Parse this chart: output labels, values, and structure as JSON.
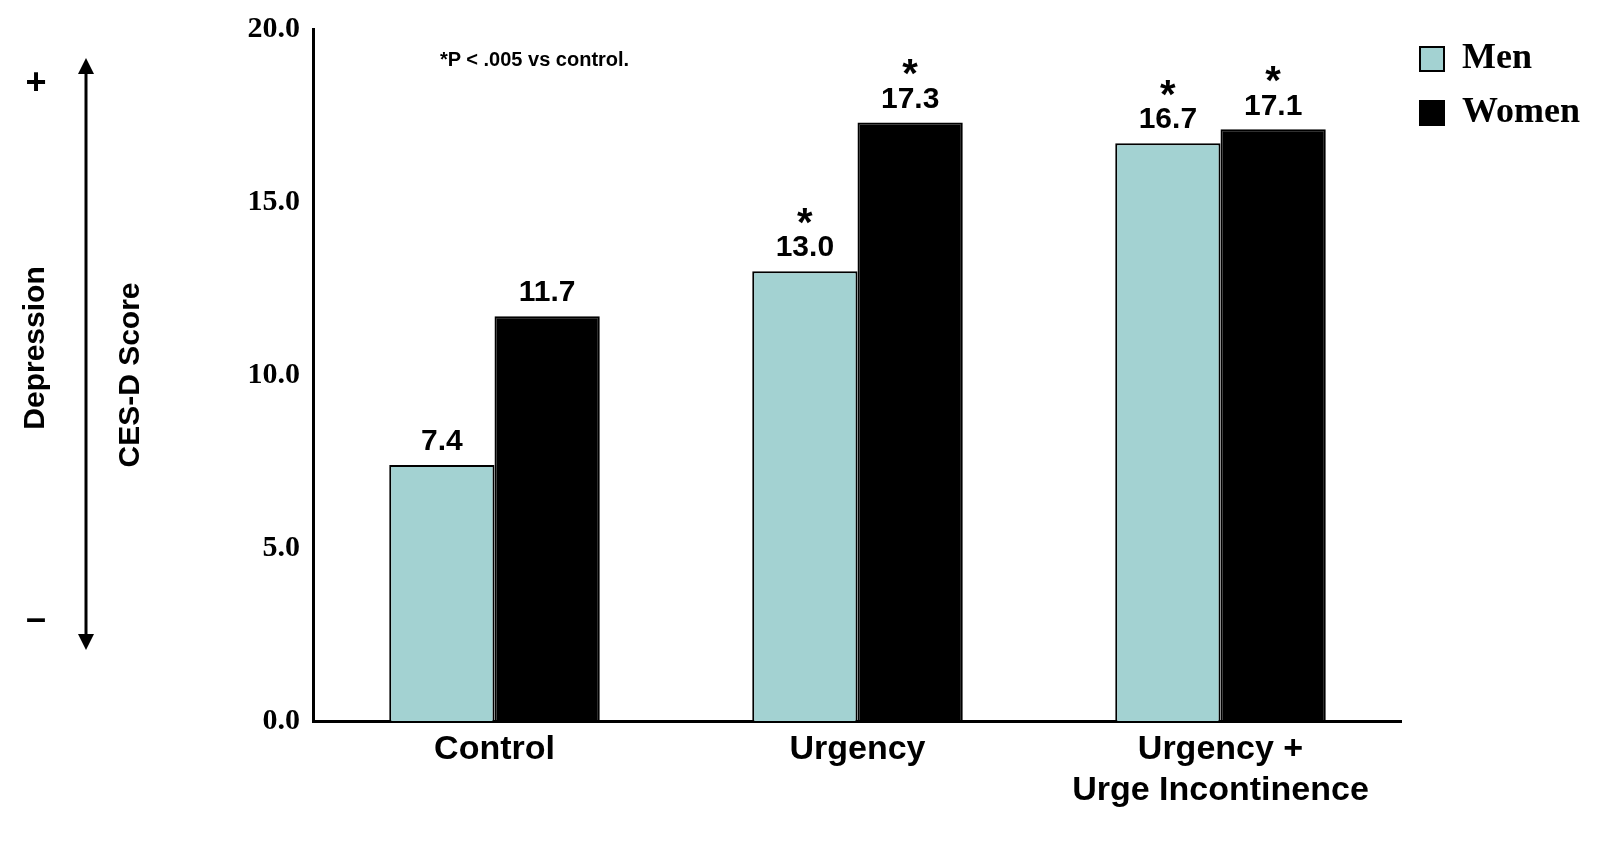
{
  "chart_data": {
    "type": "bar",
    "categories": [
      "Control",
      "Urgency",
      "Urgency +\nUrge Incontinence"
    ],
    "series": [
      {
        "name": "Men",
        "color": "#a3d2d2",
        "values": [
          7.4,
          13.0,
          16.7
        ],
        "value_labels": [
          "7.4",
          "13.0",
          "16.7"
        ]
      },
      {
        "name": "Women",
        "color": "#000000",
        "values": [
          11.7,
          17.3,
          17.1
        ],
        "value_labels": [
          "11.7",
          "17.3",
          "17.1"
        ]
      }
    ],
    "ylabel": "CES-D Score",
    "ylim": [
      0,
      20
    ],
    "yticks": [
      {
        "value": 0,
        "label": "0.0"
      },
      {
        "value": 5,
        "label": "5.0"
      },
      {
        "value": 10,
        "label": "10.0"
      },
      {
        "value": 15,
        "label": "15.0"
      },
      {
        "value": 20,
        "label": "20.0"
      }
    ],
    "grid": false,
    "legend": "top right",
    "annotations": [
      "*P < .005 vs control.",
      "Depression",
      "+",
      "–",
      {
        "text": "*",
        "x": "Urgency",
        "y": 13.0
      },
      {
        "text": "*",
        "x": "Urgency",
        "y": 17.3
      },
      {
        "text": "*",
        "x": "Urgency +\nUrge Incontinence",
        "y": 16.7
      },
      {
        "text": "*",
        "x": "Urgency +\nUrge Incontinence",
        "y": 17.1
      }
    ]
  }
}
